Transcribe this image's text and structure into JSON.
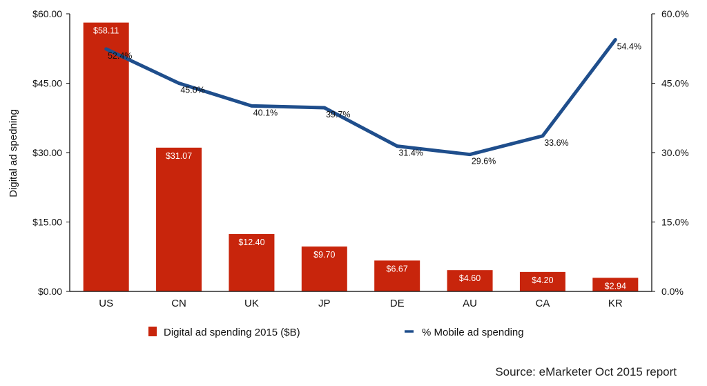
{
  "chart_data": {
    "type": "bar",
    "categories": [
      "US",
      "CN",
      "UK",
      "JP",
      "DE",
      "AU",
      "CA",
      "KR"
    ],
    "series": [
      {
        "name": "Digital ad spending 2015 ($B)",
        "type": "bar",
        "axis": "left",
        "color": "#C8250C",
        "values": [
          58.11,
          31.07,
          12.4,
          9.7,
          6.67,
          4.6,
          4.2,
          2.94
        ],
        "labels": [
          "$58.11",
          "$31.07",
          "$12.40",
          "$9.70",
          "$6.67",
          "$4.60",
          "$4.20",
          "$2.94"
        ]
      },
      {
        "name": "% Mobile ad spending",
        "type": "line",
        "axis": "right",
        "color": "#1F4E8C",
        "values": [
          52.4,
          45.0,
          40.1,
          39.7,
          31.4,
          29.6,
          33.6,
          54.4
        ],
        "labels": [
          "52.4%",
          "45.0%",
          "40.1%",
          "39.7%",
          "31.4%",
          "29.6%",
          "33.6%",
          "54.4%"
        ]
      }
    ],
    "ylabel": "Digital ad spedning",
    "ylim": [
      0,
      60
    ],
    "y_ticks": [
      "$0.00",
      "$15.00",
      "$30.00",
      "$45.00",
      "$60.00"
    ],
    "y2lim": [
      0,
      60
    ],
    "y2_ticks": [
      "0.0%",
      "15.0%",
      "30.0%",
      "45.0%",
      "60.0%"
    ],
    "grid": false,
    "legend_position": "bottom",
    "source": "Source: eMarketer Oct 2015 report"
  }
}
